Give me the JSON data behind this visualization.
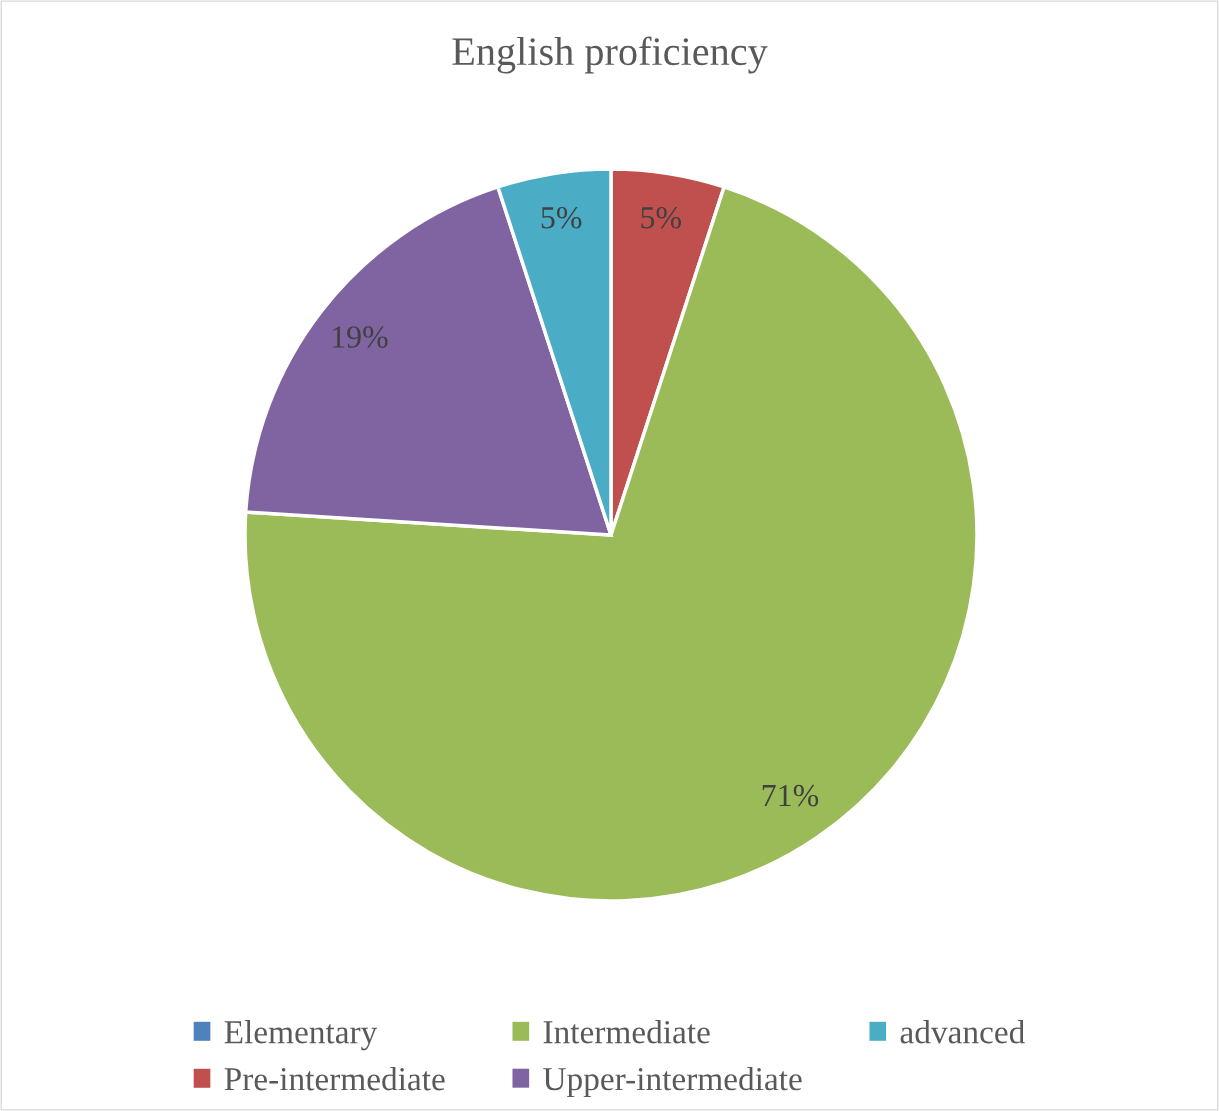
{
  "chart_data": {
    "type": "pie",
    "title": "English proficiency",
    "categories": [
      "Elementary",
      "Pre-intermediate",
      "Intermediate",
      "Upper-intermediate",
      "advanced"
    ],
    "values": [
      0,
      5,
      71,
      19,
      5
    ],
    "value_labels": [
      null,
      "5%",
      "71%",
      "19%",
      "5%"
    ],
    "colors": [
      "#4f81bd",
      "#c0504d",
      "#9bbb59",
      "#8064a2",
      "#4bacc6"
    ],
    "legend": "bottom"
  }
}
